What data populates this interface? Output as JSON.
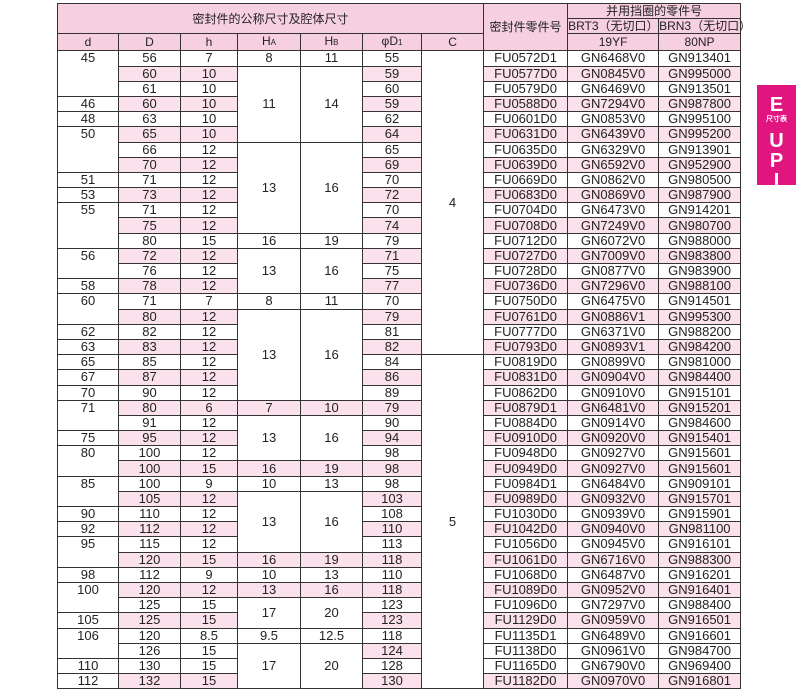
{
  "header": {
    "group_title": "密封件的公称尺寸及腔体尺寸",
    "part_no": "密封件零件号",
    "backup_title": "并用挡圈的零件号",
    "brt3": "BRT3（无切口）",
    "brn3": "BRN3（无切口）",
    "brt3_code": "19YF",
    "brn3_code": "80NP",
    "columns": [
      "d",
      "D",
      "h",
      "H",
      "H",
      "φD",
      "C"
    ],
    "subscripts": {
      "HA": "A",
      "HB": "B",
      "D1": "1"
    }
  },
  "side_tab": {
    "letter": "E",
    "caption": "尺寸表",
    "letters": [
      "U",
      "P",
      "I"
    ],
    "color": "#e0157f"
  },
  "colors": {
    "header_bg": "#f6cfe0",
    "row_shade": "#fbe1ec"
  },
  "rows": [
    {
      "d": "45",
      "D": "56",
      "h": "7",
      "HA": "8",
      "HB": "11",
      "D1": "55",
      "C": "4",
      "part": "FU0572D1",
      "brt3": "GN6468V0",
      "brn3": "GN913401",
      "shade": ""
    },
    {
      "d": null,
      "D": "60",
      "h": "10",
      "HA": "11",
      "HB": "14",
      "D1": "59",
      "C": null,
      "part": "FU0577D0",
      "brt3": "GN0845V0",
      "brn3": "GN995000",
      "shade": "all"
    },
    {
      "d": null,
      "D": "61",
      "h": "10",
      "HA": null,
      "HB": null,
      "D1": "60",
      "C": null,
      "part": "FU0579D0",
      "brt3": "GN6469V0",
      "brn3": "GN913501",
      "shade": ""
    },
    {
      "d": "46",
      "D": "60",
      "h": "10",
      "HA": null,
      "HB": null,
      "D1": "59",
      "C": null,
      "part": "FU0588D0",
      "brt3": "GN7294V0",
      "brn3": "GN987800",
      "shade": "all"
    },
    {
      "d": "48",
      "D": "63",
      "h": "10",
      "HA": null,
      "HB": null,
      "D1": "62",
      "C": null,
      "part": "FU0601D0",
      "brt3": "GN0853V0",
      "brn3": "GN995100",
      "shade": ""
    },
    {
      "d": "50",
      "D": "65",
      "h": "10",
      "HA": null,
      "HB": null,
      "D1": "64",
      "C": null,
      "part": "FU0631D0",
      "brt3": "GN6439V0",
      "brn3": "GN995200",
      "shade": "all"
    },
    {
      "d": null,
      "D": "66",
      "h": "12",
      "HA": "13",
      "HB": "16",
      "D1": "65",
      "C": null,
      "part": "FU0635D0",
      "brt3": "GN6329V0",
      "brn3": "GN913901",
      "shade": ""
    },
    {
      "d": null,
      "D": "70",
      "h": "12",
      "HA": null,
      "HB": null,
      "D1": "69",
      "C": null,
      "part": "FU0639D0",
      "brt3": "GN6592V0",
      "brn3": "GN952900",
      "shade": "all"
    },
    {
      "d": "51",
      "D": "71",
      "h": "12",
      "HA": null,
      "HB": null,
      "D1": "70",
      "C": null,
      "part": "FU0669D0",
      "brt3": "GN0862V0",
      "brn3": "GN980500",
      "shade": ""
    },
    {
      "d": "53",
      "D": "73",
      "h": "12",
      "HA": null,
      "HB": null,
      "D1": "72",
      "C": null,
      "part": "FU0683D0",
      "brt3": "GN0869V0",
      "brn3": "GN987900",
      "shade": "all"
    },
    {
      "d": "55",
      "D": "71",
      "h": "12",
      "HA": null,
      "HB": null,
      "D1": "70",
      "C": null,
      "part": "FU0704D0",
      "brt3": "GN6473V0",
      "brn3": "GN914201",
      "shade": ""
    },
    {
      "d": null,
      "D": "75",
      "h": "12",
      "HA": null,
      "HB": null,
      "D1": "74",
      "C": null,
      "part": "FU0708D0",
      "brt3": "GN7249V0",
      "brn3": "GN980700",
      "shade": "all"
    },
    {
      "d": null,
      "D": "80",
      "h": "15",
      "HA": "16",
      "HB": "19",
      "D1": "79",
      "C": null,
      "part": "FU0712D0",
      "brt3": "GN6072V0",
      "brn3": "GN988000",
      "shade": ""
    },
    {
      "d": "56",
      "D": "72",
      "h": "12",
      "HA": "13",
      "HB": "16",
      "D1": "71",
      "C": null,
      "part": "FU0727D0",
      "brt3": "GN7009V0",
      "brn3": "GN983800",
      "shade": "all"
    },
    {
      "d": null,
      "D": "76",
      "h": "12",
      "HA": null,
      "HB": null,
      "D1": "75",
      "C": null,
      "part": "FU0728D0",
      "brt3": "GN0877V0",
      "brn3": "GN983900",
      "shade": ""
    },
    {
      "d": "58",
      "D": "78",
      "h": "12",
      "HA": null,
      "HB": null,
      "D1": "77",
      "C": null,
      "part": "FU0736D0",
      "brt3": "GN7296V0",
      "brn3": "GN988100",
      "shade": "all"
    },
    {
      "d": "60",
      "D": "71",
      "h": "7",
      "HA": "8",
      "HB": "11",
      "D1": "70",
      "C": null,
      "part": "FU0750D0",
      "brt3": "GN6475V0",
      "brn3": "GN914501",
      "shade": ""
    },
    {
      "d": null,
      "D": "80",
      "h": "12",
      "HA": "13",
      "HB": "16",
      "D1": "79",
      "C": null,
      "part": "FU0761D0",
      "brt3": "GN0886V1",
      "brn3": "GN995300",
      "shade": "all"
    },
    {
      "d": "62",
      "D": "82",
      "h": "12",
      "HA": null,
      "HB": null,
      "D1": "81",
      "C": null,
      "part": "FU0777D0",
      "brt3": "GN6371V0",
      "brn3": "GN988200",
      "shade": ""
    },
    {
      "d": "63",
      "D": "83",
      "h": "12",
      "HA": null,
      "HB": null,
      "D1": "82",
      "C": null,
      "part": "FU0793D0",
      "brt3": "GN0893V1",
      "brn3": "GN984200",
      "shade": "all"
    },
    {
      "d": "65",
      "D": "85",
      "h": "12",
      "HA": null,
      "HB": null,
      "D1": "84",
      "C": "5",
      "part": "FU0819D0",
      "brt3": "GN0899V0",
      "brn3": "GN981000",
      "shade": ""
    },
    {
      "d": "67",
      "D": "87",
      "h": "12",
      "HA": null,
      "HB": null,
      "D1": "86",
      "C": null,
      "part": "FU0831D0",
      "brt3": "GN0904V0",
      "brn3": "GN984400",
      "shade": "all"
    },
    {
      "d": "70",
      "D": "90",
      "h": "12",
      "HA": null,
      "HB": null,
      "D1": "89",
      "C": null,
      "part": "FU0862D0",
      "brt3": "GN0910V0",
      "brn3": "GN915101",
      "shade": ""
    },
    {
      "d": "71",
      "D": "80",
      "h": "6",
      "HA": "7",
      "HB": "10",
      "D1": "79",
      "C": null,
      "part": "FU0879D1",
      "brt3": "GN6481V0",
      "brn3": "GN915201",
      "shade": "all"
    },
    {
      "d": null,
      "D": "91",
      "h": "12",
      "HA": "13",
      "HB": "16",
      "D1": "90",
      "C": null,
      "part": "FU0884D0",
      "brt3": "GN0914V0",
      "brn3": "GN984600",
      "shade": ""
    },
    {
      "d": "75",
      "D": "95",
      "h": "12",
      "HA": null,
      "HB": null,
      "D1": "94",
      "C": null,
      "part": "FU0910D0",
      "brt3": "GN0920V0",
      "brn3": "GN915401",
      "shade": "all"
    },
    {
      "d": "80",
      "D": "100",
      "h": "12",
      "HA": null,
      "HB": null,
      "D1": "98",
      "C": null,
      "part": "FU0948D0",
      "brt3": "GN0927V0",
      "brn3": "GN915601",
      "shade": ""
    },
    {
      "d": null,
      "D": "100",
      "h": "15",
      "HA": "16",
      "HB": "19",
      "D1": "98",
      "C": null,
      "part": "FU0949D0",
      "brt3": "GN0927V0",
      "brn3": "GN915601",
      "shade": "all"
    },
    {
      "d": "85",
      "D": "100",
      "h": "9",
      "HA": "10",
      "HB": "13",
      "D1": "98",
      "C": null,
      "part": "FU0984D1",
      "brt3": "GN6484V0",
      "brn3": "GN909101",
      "shade": ""
    },
    {
      "d": null,
      "D": "105",
      "h": "12",
      "HA": "13",
      "HB": "16",
      "D1": "103",
      "C": null,
      "part": "FU0989D0",
      "brt3": "GN0932V0",
      "brn3": "GN915701",
      "shade": "all"
    },
    {
      "d": "90",
      "D": "110",
      "h": "12",
      "HA": null,
      "HB": null,
      "D1": "108",
      "C": null,
      "part": "FU1030D0",
      "brt3": "GN0939V0",
      "brn3": "GN915901",
      "shade": ""
    },
    {
      "d": "92",
      "D": "112",
      "h": "12",
      "HA": null,
      "HB": null,
      "D1": "110",
      "C": null,
      "part": "FU1042D0",
      "brt3": "GN0940V0",
      "brn3": "GN981100",
      "shade": "all"
    },
    {
      "d": "95",
      "D": "115",
      "h": "12",
      "HA": null,
      "HB": null,
      "D1": "113",
      "C": null,
      "part": "FU1056D0",
      "brt3": "GN0945V0",
      "brn3": "GN916101",
      "shade": ""
    },
    {
      "d": null,
      "D": "120",
      "h": "15",
      "HA": "16",
      "HB": "19",
      "D1": "118",
      "C": null,
      "part": "FU1061D0",
      "brt3": "GN6716V0",
      "brn3": "GN988300",
      "shade": "all"
    },
    {
      "d": "98",
      "D": "112",
      "h": "9",
      "HA": "10",
      "HB": "13",
      "D1": "110",
      "C": null,
      "part": "FU1068D0",
      "brt3": "GN6487V0",
      "brn3": "GN916201",
      "shade": ""
    },
    {
      "d": "100",
      "D": "120",
      "h": "12",
      "HA": "13",
      "HB": "16",
      "D1": "118",
      "C": null,
      "part": "FU1089D0",
      "brt3": "GN0952V0",
      "brn3": "GN916401",
      "shade": "all"
    },
    {
      "d": null,
      "D": "125",
      "h": "15",
      "HA": "17",
      "HB": "20",
      "D1": "123",
      "C": null,
      "part": "FU1096D0",
      "brt3": "GN7297V0",
      "brn3": "GN988400",
      "shade": ""
    },
    {
      "d": "105",
      "D": "125",
      "h": "15",
      "HA": null,
      "HB": null,
      "D1": "123",
      "C": null,
      "part": "FU1129D0",
      "brt3": "GN0959V0",
      "brn3": "GN916501",
      "shade": "all"
    },
    {
      "d": "106",
      "D": "120",
      "h": "8.5",
      "HA": "9.5",
      "HB": "12.5",
      "D1": "118",
      "C": null,
      "part": "FU1135D1",
      "brt3": "GN6489V0",
      "brn3": "GN916601",
      "shade": ""
    },
    {
      "d": null,
      "D": "126",
      "h": "15",
      "HA": "17",
      "HB": "20",
      "D1": "124",
      "C": null,
      "part": "FU1138D0",
      "brt3": "GN0961V0",
      "brn3": "GN984700",
      "shade": "d1"
    },
    {
      "d": "110",
      "D": "130",
      "h": "15",
      "HA": null,
      "HB": null,
      "D1": "128",
      "C": null,
      "part": "FU1165D0",
      "brt3": "GN6790V0",
      "brn3": "GN969400",
      "shade": ""
    },
    {
      "d": "112",
      "D": "132",
      "h": "15",
      "HA": null,
      "HB": null,
      "D1": "130",
      "C": null,
      "part": "FU1182D0",
      "brt3": "GN0970V0",
      "brn3": "GN916801",
      "shade": "all"
    }
  ]
}
